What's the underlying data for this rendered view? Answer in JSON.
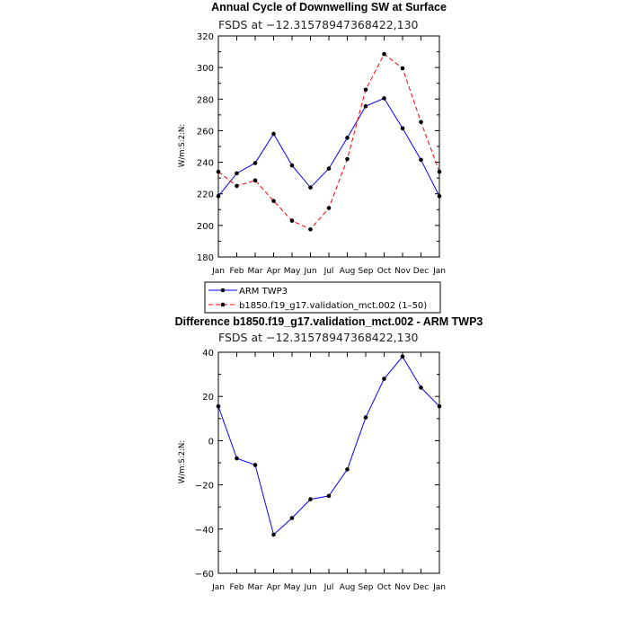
{
  "chart_data": [
    {
      "type": "line",
      "title": "Annual Cycle of Downwelling SW at Surface",
      "subtitle": "FSDS at −12.31578947368422,130",
      "ylabel": "W/m:S:2:N:",
      "ylim": [
        180,
        320
      ],
      "yticks": [
        "180",
        "200",
        "220",
        "240",
        "260",
        "280",
        "300",
        "320"
      ],
      "categories": [
        "Jan",
        "Feb",
        "Mar",
        "Apr",
        "May",
        "Jun",
        "Jul",
        "Aug",
        "Sep",
        "Oct",
        "Nov",
        "Dec",
        "Jan"
      ],
      "series": [
        {
          "name": "ARM TWP3",
          "color": "#0000ff",
          "dash": "solid",
          "values": [
            218.5,
            233,
            239.5,
            258,
            238,
            224,
            236,
            255.5,
            275.5,
            280.5,
            261.5,
            241.5,
            218.5
          ]
        },
        {
          "name": "b1850.f19_g17.validation_mct.002 (1–50)",
          "color": "#ff0000",
          "dash": "dashed",
          "values": [
            234,
            225,
            228.5,
            215.5,
            203,
            197.5,
            211,
            242,
            286,
            308.5,
            299.5,
            265.5,
            234
          ]
        }
      ],
      "legend": "below"
    },
    {
      "type": "line",
      "title": "Difference b1850.f19_g17.validation_mct.002 - ARM TWP3",
      "subtitle": "FSDS at −12.31578947368422,130",
      "ylabel": "W/m:S:2:N:",
      "ylim": [
        -60,
        40
      ],
      "yticks": [
        "−60",
        "−40",
        "−20",
        "0",
        "20",
        "40"
      ],
      "categories": [
        "Jan",
        "Feb",
        "Mar",
        "Apr",
        "May",
        "Jun",
        "Jul",
        "Aug",
        "Sep",
        "Oct",
        "Nov",
        "Dec",
        "Jan"
      ],
      "series": [
        {
          "color": "#0000ff",
          "dash": "solid",
          "values": [
            15.5,
            -8,
            -11,
            -42.5,
            -35,
            -26.5,
            -25,
            -13,
            10.5,
            28,
            38,
            24,
            15.5
          ]
        }
      ]
    }
  ]
}
